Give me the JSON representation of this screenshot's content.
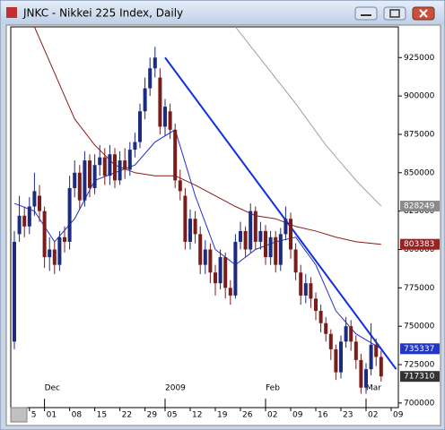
{
  "chart_data": {
    "type": "candlestick",
    "title": "JNKC - Nikkei 225 Index, Daily",
    "categories": [
      null,
      null,
      null,
      "5",
      null,
      null,
      "01",
      null,
      null,
      null,
      null,
      "08",
      null,
      null,
      null,
      null,
      "15",
      null,
      null,
      null,
      null,
      "22",
      null,
      null,
      null,
      null,
      "29",
      null,
      null,
      null,
      "05",
      null,
      null,
      null,
      null,
      "12",
      null,
      null,
      null,
      null,
      "19",
      null,
      null,
      null,
      null,
      "26",
      null,
      null,
      null,
      null,
      "02",
      null,
      null,
      null,
      null,
      "09",
      null,
      null,
      null,
      null,
      "16",
      null,
      null,
      null,
      null,
      "23",
      null,
      null,
      null,
      null,
      "02",
      null,
      null,
      null,
      null,
      "09"
    ],
    "period_labels": [
      {
        "label": "Dec",
        "index": 6
      },
      {
        "label": "2009",
        "index": 30
      },
      {
        "label": "Feb",
        "index": 50
      },
      {
        "label": "Mar",
        "index": 70
      }
    ],
    "open": [
      740000,
      810000,
      822000,
      815000,
      828000,
      835000,
      825000,
      795000,
      800000,
      790000,
      808000,
      805000,
      840000,
      850000,
      832000,
      858000,
      840000,
      855000,
      860000,
      848000,
      862000,
      845000,
      858000,
      852000,
      865000,
      870000,
      890000,
      905000,
      918000,
      912000,
      880000,
      890000,
      878000,
      845000,
      835000,
      805000,
      820000,
      810000,
      790000,
      800000,
      785000,
      778000,
      795000,
      775000,
      770000,
      805000,
      812000,
      800000,
      825000,
      805000,
      812000,
      795000,
      808000,
      790000,
      810000,
      820000,
      800000,
      785000,
      770000,
      778000,
      768000,
      760000,
      752000,
      745000,
      735000,
      720000,
      740000,
      750000,
      740000,
      728000,
      710000,
      722000,
      738000,
      730000,
      null,
      null
    ],
    "high": [
      812000,
      835000,
      828000,
      834000,
      850000,
      842000,
      828000,
      808000,
      805000,
      812000,
      815000,
      848000,
      858000,
      855000,
      864000,
      862000,
      862000,
      868000,
      866000,
      868000,
      866000,
      864000,
      866000,
      870000,
      876000,
      895000,
      912000,
      925000,
      932000,
      918000,
      898000,
      895000,
      882000,
      852000,
      840000,
      826000,
      825000,
      815000,
      806000,
      804000,
      790000,
      800000,
      798000,
      780000,
      810000,
      818000,
      815000,
      830000,
      828000,
      818000,
      816000,
      812000,
      812000,
      814000,
      828000,
      824000,
      804000,
      790000,
      784000,
      782000,
      772000,
      764000,
      756000,
      748000,
      738000,
      744000,
      756000,
      754000,
      744000,
      732000,
      726000,
      752000,
      742000,
      734000,
      null,
      null
    ],
    "low": [
      735000,
      805000,
      808000,
      810000,
      822000,
      818000,
      788000,
      786000,
      784000,
      786000,
      798000,
      800000,
      834000,
      826000,
      828000,
      834000,
      836000,
      848000,
      842000,
      842000,
      840000,
      842000,
      846000,
      848000,
      860000,
      866000,
      885000,
      900000,
      912000,
      875000,
      874000,
      872000,
      840000,
      832000,
      800000,
      800000,
      804000,
      784000,
      784000,
      778000,
      770000,
      774000,
      768000,
      764000,
      768000,
      800000,
      795000,
      798000,
      800000,
      800000,
      790000,
      790000,
      785000,
      786000,
      806000,
      794000,
      780000,
      764000,
      765000,
      762000,
      754000,
      746000,
      740000,
      728000,
      715000,
      716000,
      736000,
      734000,
      722000,
      706000,
      706000,
      718000,
      724000,
      714000,
      null,
      null
    ],
    "close": [
      805000,
      822000,
      815000,
      828000,
      838000,
      825000,
      795000,
      800000,
      790000,
      808000,
      805000,
      840000,
      850000,
      832000,
      858000,
      840000,
      855000,
      860000,
      848000,
      862000,
      845000,
      858000,
      852000,
      865000,
      870000,
      890000,
      905000,
      918000,
      925000,
      880000,
      893000,
      878000,
      845000,
      838000,
      805000,
      820000,
      810000,
      790000,
      800000,
      785000,
      778000,
      795000,
      775000,
      770000,
      805000,
      812000,
      800000,
      825000,
      805000,
      812000,
      795000,
      808000,
      790000,
      810000,
      820000,
      800000,
      785000,
      770000,
      778000,
      768000,
      760000,
      752000,
      745000,
      735000,
      720000,
      740000,
      750000,
      740000,
      728000,
      710000,
      722000,
      738000,
      730000,
      717310,
      null,
      null
    ],
    "up_color": "#1c2a80",
    "down_color": "#7a1c1c",
    "overlays": [
      {
        "color": "#1f2fd0",
        "x": [
          0,
          4,
          8,
          12,
          16,
          20,
          24,
          28,
          32,
          36,
          40,
          44,
          48,
          52,
          56,
          60,
          64,
          68,
          73
        ],
        "values": [
          830000,
          825000,
          805000,
          820000,
          845000,
          850000,
          855000,
          870000,
          878000,
          835000,
          800000,
          790000,
          800000,
          805000,
          808000,
          790000,
          760000,
          745000,
          735337
        ]
      },
      {
        "color": "#8b1a1a",
        "x": [
          4,
          8,
          12,
          16,
          20,
          24,
          28,
          32,
          36,
          40,
          44,
          48,
          52,
          56,
          60,
          64,
          68,
          73
        ],
        "values": [
          945000,
          915000,
          885000,
          868000,
          855000,
          850000,
          848000,
          848000,
          842000,
          835000,
          828000,
          822000,
          820000,
          815000,
          812000,
          808000,
          805000,
          803383
        ]
      },
      {
        "color": "#a0a0a0",
        "x": [
          44,
          50,
          56,
          62,
          68,
          73
        ],
        "values": [
          945000,
          920000,
          895000,
          868000,
          845000,
          828249
        ]
      }
    ],
    "trendline": {
      "color": "#1030e0",
      "x": [
        30,
        76
      ],
      "values": [
        925000,
        722000
      ]
    },
    "price_tags": [
      {
        "value": 828249,
        "color": "#8a8a8a"
      },
      {
        "value": 803383,
        "color": "#9b2020"
      },
      {
        "value": 735337,
        "color": "#2236c8"
      },
      {
        "value": 717310,
        "color": "#333333"
      }
    ],
    "ylim": [
      697000,
      945000
    ],
    "yticks": [
      700000,
      725000,
      750000,
      775000,
      800000,
      825000,
      850000,
      875000,
      900000,
      925000
    ]
  }
}
